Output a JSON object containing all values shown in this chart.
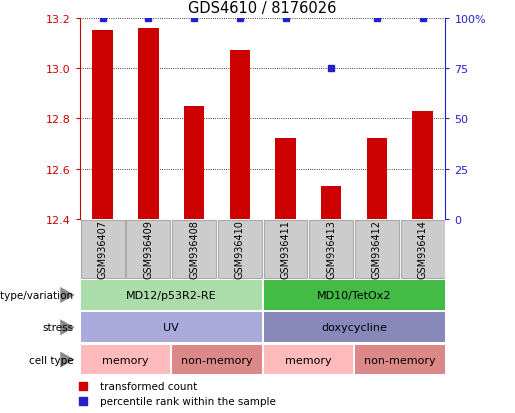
{
  "title": "GDS4610 / 8176026",
  "samples": [
    "GSM936407",
    "GSM936409",
    "GSM936408",
    "GSM936410",
    "GSM936411",
    "GSM936413",
    "GSM936412",
    "GSM936414"
  ],
  "bar_values": [
    13.15,
    13.16,
    12.85,
    13.07,
    12.72,
    12.53,
    12.72,
    12.83
  ],
  "percentile_values": [
    100,
    100,
    100,
    100,
    100,
    75,
    100,
    100
  ],
  "ylim": [
    12.4,
    13.2
  ],
  "yticks_left": [
    12.4,
    12.6,
    12.8,
    13.0,
    13.2
  ],
  "yticks_right": [
    0,
    25,
    50,
    75,
    100
  ],
  "bar_color": "#cc0000",
  "dot_color": "#2222cc",
  "bar_bottom": 12.4,
  "genotype_groups": [
    {
      "label": "MD12/p53R2-RE",
      "start": 0,
      "end": 4,
      "color": "#aaddaa"
    },
    {
      "label": "MD10/TetOx2",
      "start": 4,
      "end": 8,
      "color": "#44bb44"
    }
  ],
  "stress_groups": [
    {
      "label": "UV",
      "start": 0,
      "end": 4,
      "color": "#aaaadd"
    },
    {
      "label": "doxycycline",
      "start": 4,
      "end": 8,
      "color": "#8888bb"
    }
  ],
  "celltype_groups": [
    {
      "label": "memory",
      "start": 0,
      "end": 2,
      "color": "#ffbbbb"
    },
    {
      "label": "non-memory",
      "start": 2,
      "end": 4,
      "color": "#dd8888"
    },
    {
      "label": "memory",
      "start": 4,
      "end": 6,
      "color": "#ffbbbb"
    },
    {
      "label": "non-memory",
      "start": 6,
      "end": 8,
      "color": "#dd8888"
    }
  ],
  "row_labels": [
    "genotype/variation",
    "stress",
    "cell type"
  ],
  "sample_box_color": "#cccccc",
  "border_color": "#999999"
}
